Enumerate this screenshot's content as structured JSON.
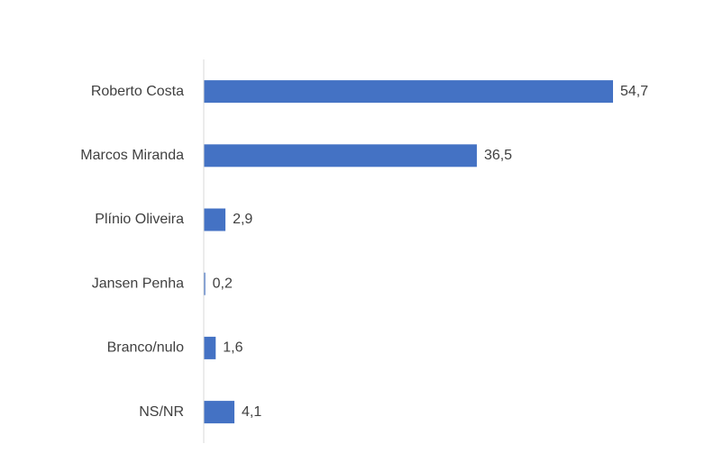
{
  "chart_data": {
    "type": "hbar",
    "categories": [
      "Roberto Costa",
      "Marcos Miranda",
      "Plínio Oliveira",
      "Jansen Penha",
      "Branco/nulo",
      "NS/NR"
    ],
    "values": [
      54.7,
      36.5,
      2.9,
      0.2,
      1.6,
      4.1
    ],
    "value_labels": [
      "54,7",
      "36,5",
      "2,9",
      "0,2",
      "1,6",
      "4,1"
    ],
    "color": "#4472c4"
  }
}
